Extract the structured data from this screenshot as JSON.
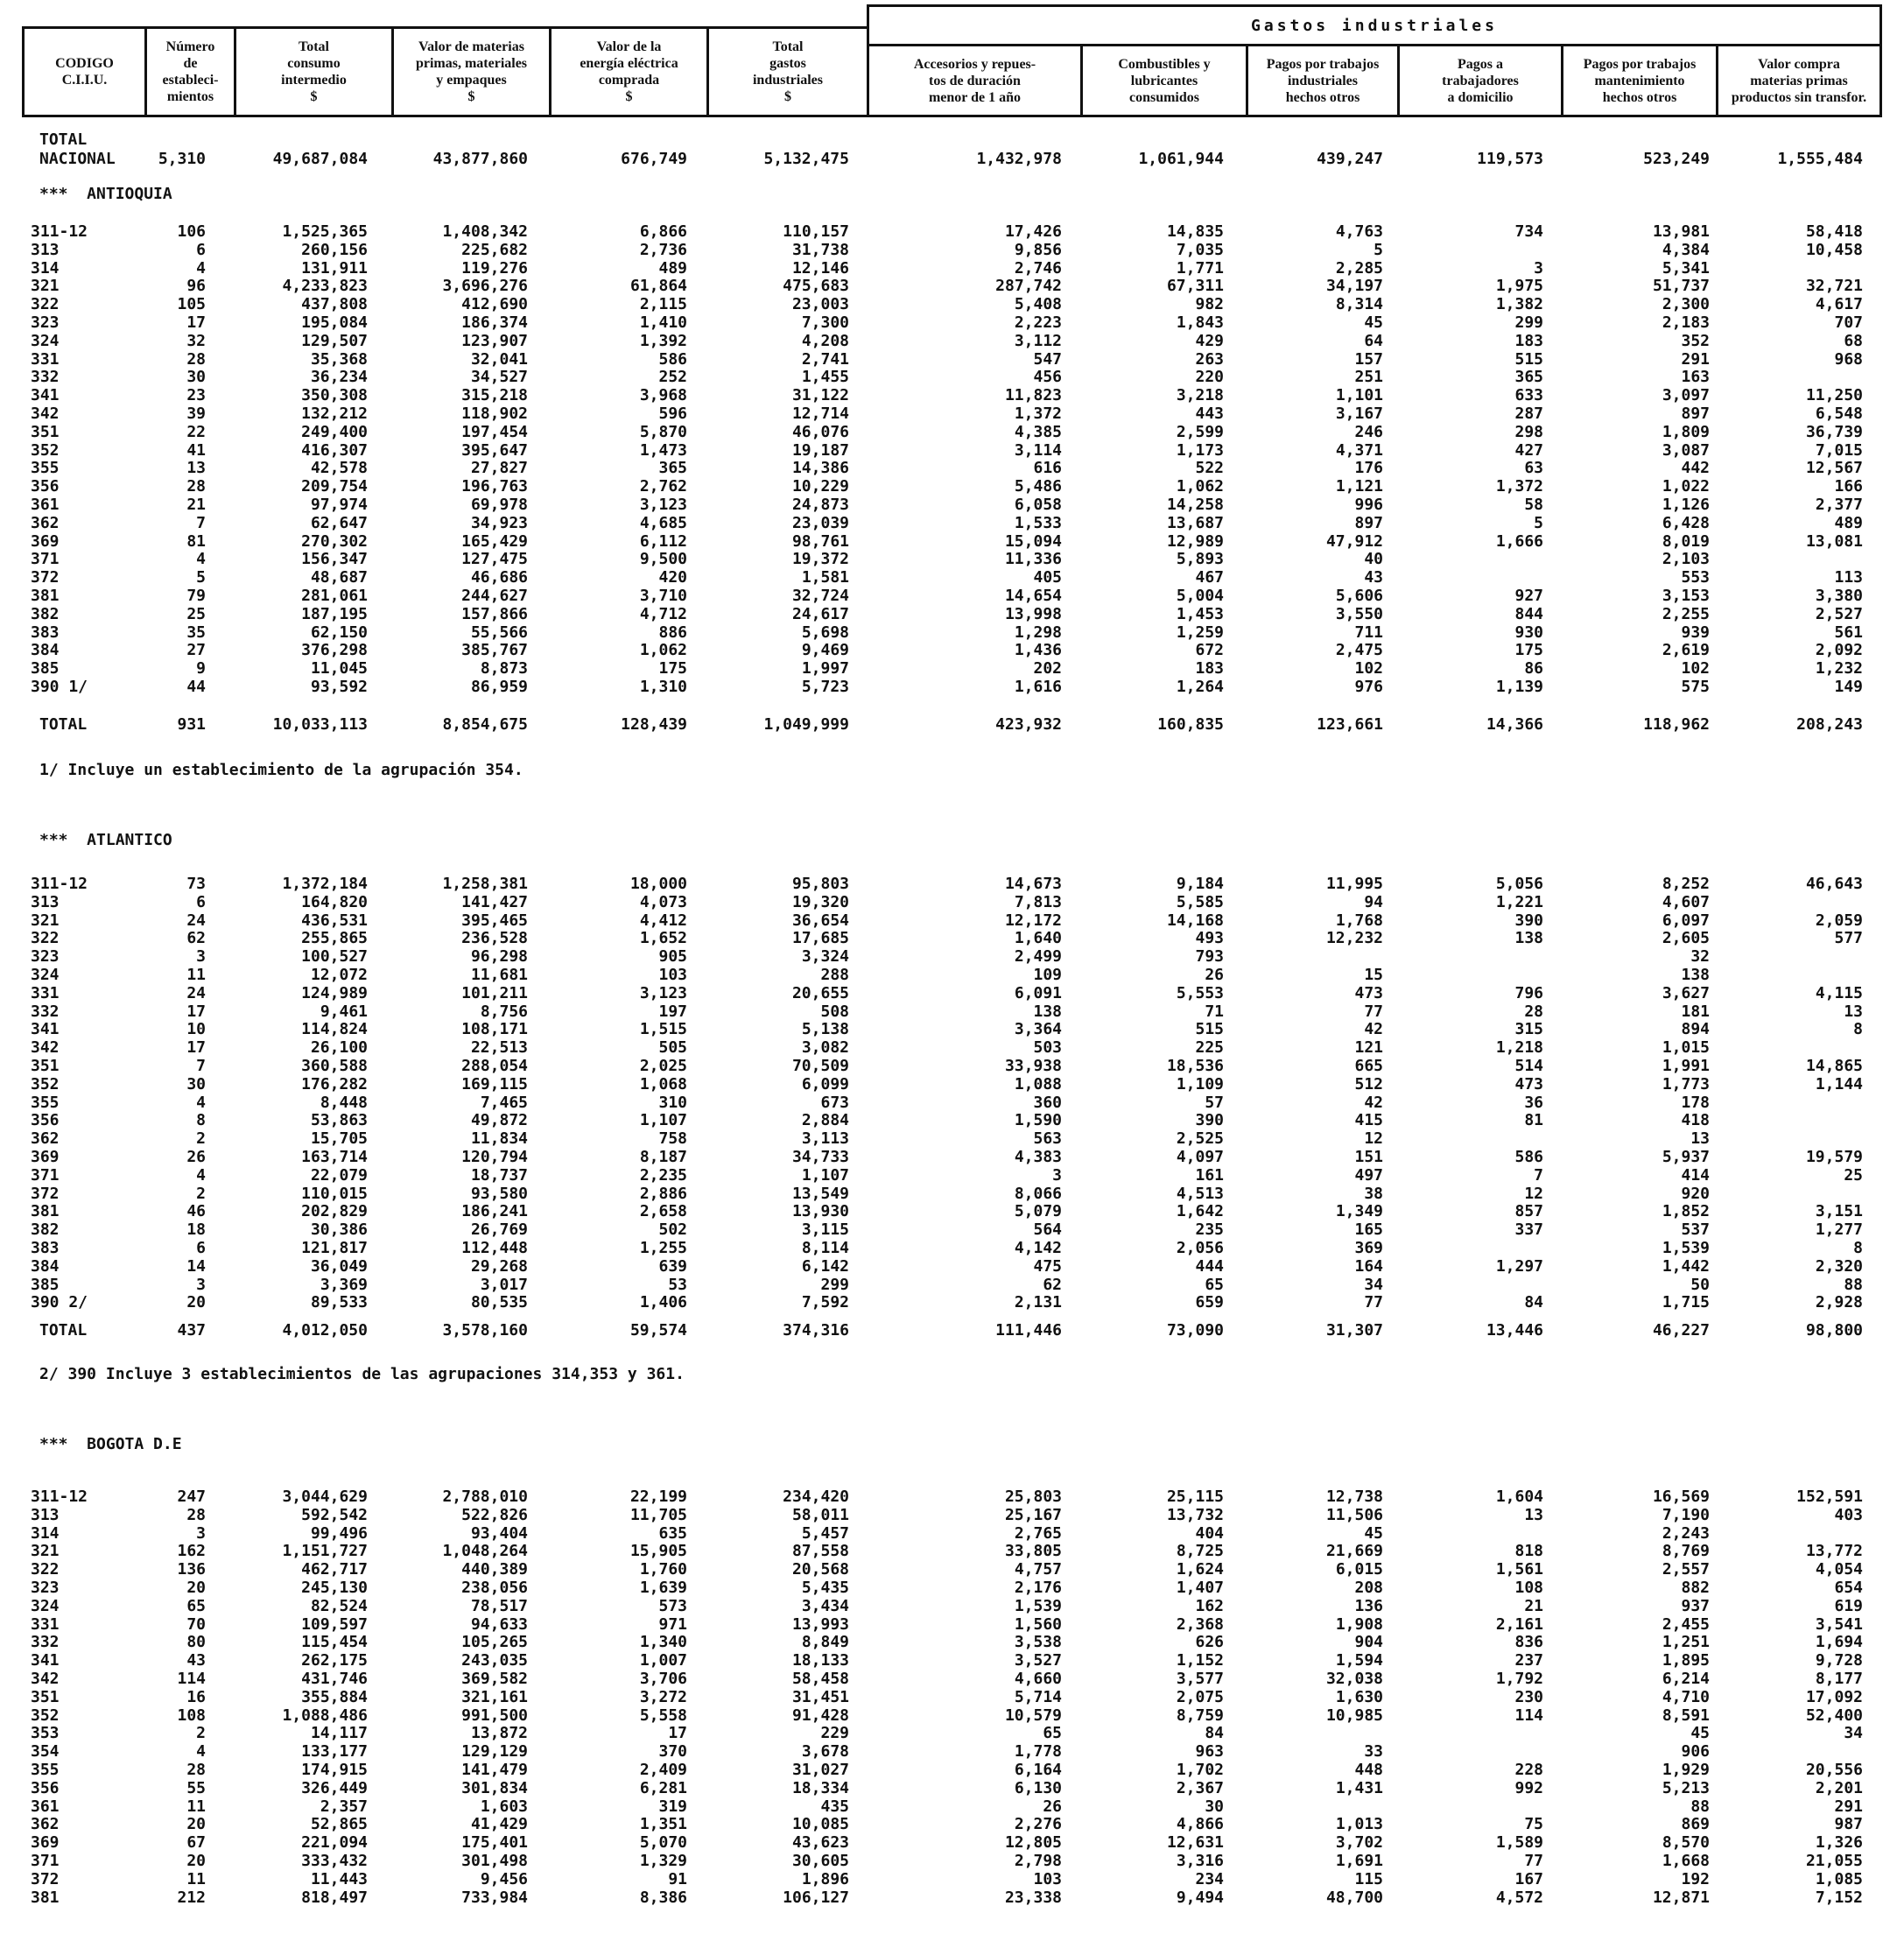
{
  "header": {
    "codigo": "CODIGO\nC.I.I.U.",
    "numero": "Número\nde\nestableci-\nmientos",
    "total_consumo": "Total\nconsumo\nintermedio\n$",
    "valor_materias": "Valor de materias\nprimas, materiales\ny empaques\n$",
    "valor_energia": "Valor de la\nenergía eléctrica\ncomprada\n$",
    "total_gastos": "Total\ngastos\nindustriales\n$",
    "gastos_industriales": "Gastos industriales",
    "accesorios": "Accesorios y repues-\ntos de duración\nmenor de 1 año",
    "combustibles": "Combustibles y\nlubricantes\nconsumidos",
    "pagos_trabajos_ind": "Pagos por trabajos\nindustriales\nhechos otros",
    "pagos_domicilio": "Pagos a\ntrabajadores\na domicilio",
    "pagos_mantenimiento": "Pagos por trabajos\nmantenimiento\nhechos otros",
    "valor_compra": "Valor compra\nmaterias primas\nproductos sin transfor."
  },
  "total_nacional": {
    "label1": "TOTAL",
    "label2": "NACIONAL",
    "values": [
      "5,310",
      "49,687,084",
      "43,877,860",
      "676,749",
      "5,132,475",
      "1,432,978",
      "1,061,944",
      "439,247",
      "119,573",
      "523,249",
      "1,555,484"
    ]
  },
  "sections": [
    {
      "title": "***  ANTIOQUIA",
      "rows": [
        [
          "311-12",
          "106",
          "1,525,365",
          "1,408,342",
          "6,866",
          "110,157",
          "17,426",
          "14,835",
          "4,763",
          "734",
          "13,981",
          "58,418"
        ],
        [
          "313",
          "6",
          "260,156",
          "225,682",
          "2,736",
          "31,738",
          "9,856",
          "7,035",
          "5",
          "",
          "4,384",
          "10,458"
        ],
        [
          "314",
          "4",
          "131,911",
          "119,276",
          "489",
          "12,146",
          "2,746",
          "1,771",
          "2,285",
          "3",
          "5,341",
          ""
        ],
        [
          "321",
          "96",
          "4,233,823",
          "3,696,276",
          "61,864",
          "475,683",
          "287,742",
          "67,311",
          "34,197",
          "1,975",
          "51,737",
          "32,721"
        ],
        [
          "322",
          "105",
          "437,808",
          "412,690",
          "2,115",
          "23,003",
          "5,408",
          "982",
          "8,314",
          "1,382",
          "2,300",
          "4,617"
        ],
        [
          "323",
          "17",
          "195,084",
          "186,374",
          "1,410",
          "7,300",
          "2,223",
          "1,843",
          "45",
          "299",
          "2,183",
          "707"
        ],
        [
          "324",
          "32",
          "129,507",
          "123,907",
          "1,392",
          "4,208",
          "3,112",
          "429",
          "64",
          "183",
          "352",
          "68"
        ],
        [
          "331",
          "28",
          "35,368",
          "32,041",
          "586",
          "2,741",
          "547",
          "263",
          "157",
          "515",
          "291",
          "968"
        ],
        [
          "332",
          "30",
          "36,234",
          "34,527",
          "252",
          "1,455",
          "456",
          "220",
          "251",
          "365",
          "163",
          ""
        ],
        [
          "341",
          "23",
          "350,308",
          "315,218",
          "3,968",
          "31,122",
          "11,823",
          "3,218",
          "1,101",
          "633",
          "3,097",
          "11,250"
        ],
        [
          "342",
          "39",
          "132,212",
          "118,902",
          "596",
          "12,714",
          "1,372",
          "443",
          "3,167",
          "287",
          "897",
          "6,548"
        ],
        [
          "351",
          "22",
          "249,400",
          "197,454",
          "5,870",
          "46,076",
          "4,385",
          "2,599",
          "246",
          "298",
          "1,809",
          "36,739"
        ],
        [
          "352",
          "41",
          "416,307",
          "395,647",
          "1,473",
          "19,187",
          "3,114",
          "1,173",
          "4,371",
          "427",
          "3,087",
          "7,015"
        ],
        [
          "355",
          "13",
          "42,578",
          "27,827",
          "365",
          "14,386",
          "616",
          "522",
          "176",
          "63",
          "442",
          "12,567"
        ],
        [
          "356",
          "28",
          "209,754",
          "196,763",
          "2,762",
          "10,229",
          "5,486",
          "1,062",
          "1,121",
          "1,372",
          "1,022",
          "166"
        ],
        [
          "361",
          "21",
          "97,974",
          "69,978",
          "3,123",
          "24,873",
          "6,058",
          "14,258",
          "996",
          "58",
          "1,126",
          "2,377"
        ],
        [
          "362",
          "7",
          "62,647",
          "34,923",
          "4,685",
          "23,039",
          "1,533",
          "13,687",
          "897",
          "5",
          "6,428",
          "489"
        ],
        [
          "369",
          "81",
          "270,302",
          "165,429",
          "6,112",
          "98,761",
          "15,094",
          "12,989",
          "47,912",
          "1,666",
          "8,019",
          "13,081"
        ],
        [
          "371",
          "4",
          "156,347",
          "127,475",
          "9,500",
          "19,372",
          "11,336",
          "5,893",
          "40",
          "",
          "2,103",
          ""
        ],
        [
          "372",
          "5",
          "48,687",
          "46,686",
          "420",
          "1,581",
          "405",
          "467",
          "43",
          "",
          "553",
          "113"
        ],
        [
          "381",
          "79",
          "281,061",
          "244,627",
          "3,710",
          "32,724",
          "14,654",
          "5,004",
          "5,606",
          "927",
          "3,153",
          "3,380"
        ],
        [
          "382",
          "25",
          "187,195",
          "157,866",
          "4,712",
          "24,617",
          "13,998",
          "1,453",
          "3,550",
          "844",
          "2,255",
          "2,527"
        ],
        [
          "383",
          "35",
          "62,150",
          "55,566",
          "886",
          "5,698",
          "1,298",
          "1,259",
          "711",
          "930",
          "939",
          "561"
        ],
        [
          "384",
          "27",
          "376,298",
          "385,767",
          "1,062",
          "9,469",
          "1,436",
          "672",
          "2,475",
          "175",
          "2,619",
          "2,092"
        ],
        [
          "385",
          "9",
          "11,045",
          "8,873",
          "175",
          "1,997",
          "202",
          "183",
          "102",
          "86",
          "102",
          "1,232"
        ],
        [
          "390 1/",
          "44",
          "93,592",
          "86,959",
          "1,310",
          "5,723",
          "1,616",
          "1,264",
          "976",
          "1,139",
          "575",
          "149"
        ]
      ],
      "total": [
        "TOTAL",
        "931",
        "10,033,113",
        "8,854,675",
        "128,439",
        "1,049,999",
        "423,932",
        "160,835",
        "123,661",
        "14,366",
        "118,962",
        "208,243"
      ],
      "note": "1/ Incluye un establecimiento de la agrupación 354."
    },
    {
      "title": "***  ATLANTICO",
      "rows": [
        [
          "311-12",
          "73",
          "1,372,184",
          "1,258,381",
          "18,000",
          "95,803",
          "14,673",
          "9,184",
          "11,995",
          "5,056",
          "8,252",
          "46,643"
        ],
        [
          "313",
          "6",
          "164,820",
          "141,427",
          "4,073",
          "19,320",
          "7,813",
          "5,585",
          "94",
          "1,221",
          "4,607",
          ""
        ],
        [
          "321",
          "24",
          "436,531",
          "395,465",
          "4,412",
          "36,654",
          "12,172",
          "14,168",
          "1,768",
          "390",
          "6,097",
          "2,059"
        ],
        [
          "322",
          "62",
          "255,865",
          "236,528",
          "1,652",
          "17,685",
          "1,640",
          "493",
          "12,232",
          "138",
          "2,605",
          "577"
        ],
        [
          "323",
          "3",
          "100,527",
          "96,298",
          "905",
          "3,324",
          "2,499",
          "793",
          "",
          "",
          "32",
          ""
        ],
        [
          "324",
          "11",
          "12,072",
          "11,681",
          "103",
          "288",
          "109",
          "26",
          "15",
          "",
          "138",
          ""
        ],
        [
          "331",
          "24",
          "124,989",
          "101,211",
          "3,123",
          "20,655",
          "6,091",
          "5,553",
          "473",
          "796",
          "3,627",
          "4,115"
        ],
        [
          "332",
          "17",
          "9,461",
          "8,756",
          "197",
          "508",
          "138",
          "71",
          "77",
          "28",
          "181",
          "13"
        ],
        [
          "341",
          "10",
          "114,824",
          "108,171",
          "1,515",
          "5,138",
          "3,364",
          "515",
          "42",
          "315",
          "894",
          "8"
        ],
        [
          "342",
          "17",
          "26,100",
          "22,513",
          "505",
          "3,082",
          "503",
          "225",
          "121",
          "1,218",
          "1,015",
          ""
        ],
        [
          "351",
          "7",
          "360,588",
          "288,054",
          "2,025",
          "70,509",
          "33,938",
          "18,536",
          "665",
          "514",
          "1,991",
          "14,865"
        ],
        [
          "352",
          "30",
          "176,282",
          "169,115",
          "1,068",
          "6,099",
          "1,088",
          "1,109",
          "512",
          "473",
          "1,773",
          "1,144"
        ],
        [
          "355",
          "4",
          "8,448",
          "7,465",
          "310",
          "673",
          "360",
          "57",
          "42",
          "36",
          "178",
          ""
        ],
        [
          "356",
          "8",
          "53,863",
          "49,872",
          "1,107",
          "2,884",
          "1,590",
          "390",
          "415",
          "81",
          "418",
          ""
        ],
        [
          "362",
          "2",
          "15,705",
          "11,834",
          "758",
          "3,113",
          "563",
          "2,525",
          "12",
          "",
          "13",
          ""
        ],
        [
          "369",
          "26",
          "163,714",
          "120,794",
          "8,187",
          "34,733",
          "4,383",
          "4,097",
          "151",
          "586",
          "5,937",
          "19,579"
        ],
        [
          "371",
          "4",
          "22,079",
          "18,737",
          "2,235",
          "1,107",
          "3",
          "161",
          "497",
          "7",
          "414",
          "25"
        ],
        [
          "372",
          "2",
          "110,015",
          "93,580",
          "2,886",
          "13,549",
          "8,066",
          "4,513",
          "38",
          "12",
          "920",
          ""
        ],
        [
          "381",
          "46",
          "202,829",
          "186,241",
          "2,658",
          "13,930",
          "5,079",
          "1,642",
          "1,349",
          "857",
          "1,852",
          "3,151"
        ],
        [
          "382",
          "18",
          "30,386",
          "26,769",
          "502",
          "3,115",
          "564",
          "235",
          "165",
          "337",
          "537",
          "1,277"
        ],
        [
          "383",
          "6",
          "121,817",
          "112,448",
          "1,255",
          "8,114",
          "4,142",
          "2,056",
          "369",
          "",
          "1,539",
          "8"
        ],
        [
          "384",
          "14",
          "36,049",
          "29,268",
          "639",
          "6,142",
          "475",
          "444",
          "164",
          "1,297",
          "1,442",
          "2,320"
        ],
        [
          "385",
          "3",
          "3,369",
          "3,017",
          "53",
          "299",
          "62",
          "65",
          "34",
          "",
          "50",
          "88"
        ],
        [
          "390 2/",
          "20",
          "89,533",
          "80,535",
          "1,406",
          "7,592",
          "2,131",
          "659",
          "77",
          "84",
          "1,715",
          "2,928"
        ]
      ],
      "total": [
        "TOTAL",
        "437",
        "4,012,050",
        "3,578,160",
        "59,574",
        "374,316",
        "111,446",
        "73,090",
        "31,307",
        "13,446",
        "46,227",
        "98,800"
      ],
      "note": "2/ 390 Incluye 3 establecimientos de las agrupaciones 314,353 y 361."
    },
    {
      "title": "***  BOGOTA D.E",
      "rows": [
        [
          "311-12",
          "247",
          "3,044,629",
          "2,788,010",
          "22,199",
          "234,420",
          "25,803",
          "25,115",
          "12,738",
          "1,604",
          "16,569",
          "152,591"
        ],
        [
          "313",
          "28",
          "592,542",
          "522,826",
          "11,705",
          "58,011",
          "25,167",
          "13,732",
          "11,506",
          "13",
          "7,190",
          "403"
        ],
        [
          "314",
          "3",
          "99,496",
          "93,404",
          "635",
          "5,457",
          "2,765",
          "404",
          "45",
          "",
          "2,243",
          ""
        ],
        [
          "321",
          "162",
          "1,151,727",
          "1,048,264",
          "15,905",
          "87,558",
          "33,805",
          "8,725",
          "21,669",
          "818",
          "8,769",
          "13,772"
        ],
        [
          "322",
          "136",
          "462,717",
          "440,389",
          "1,760",
          "20,568",
          "4,757",
          "1,624",
          "6,015",
          "1,561",
          "2,557",
          "4,054"
        ],
        [
          "323",
          "20",
          "245,130",
          "238,056",
          "1,639",
          "5,435",
          "2,176",
          "1,407",
          "208",
          "108",
          "882",
          "654"
        ],
        [
          "324",
          "65",
          "82,524",
          "78,517",
          "573",
          "3,434",
          "1,539",
          "162",
          "136",
          "21",
          "937",
          "619"
        ],
        [
          "331",
          "70",
          "109,597",
          "94,633",
          "971",
          "13,993",
          "1,560",
          "2,368",
          "1,908",
          "2,161",
          "2,455",
          "3,541"
        ],
        [
          "332",
          "80",
          "115,454",
          "105,265",
          "1,340",
          "8,849",
          "3,538",
          "626",
          "904",
          "836",
          "1,251",
          "1,694"
        ],
        [
          "341",
          "43",
          "262,175",
          "243,035",
          "1,007",
          "18,133",
          "3,527",
          "1,152",
          "1,594",
          "237",
          "1,895",
          "9,728"
        ],
        [
          "342",
          "114",
          "431,746",
          "369,582",
          "3,706",
          "58,458",
          "4,660",
          "3,577",
          "32,038",
          "1,792",
          "6,214",
          "8,177"
        ],
        [
          "351",
          "16",
          "355,884",
          "321,161",
          "3,272",
          "31,451",
          "5,714",
          "2,075",
          "1,630",
          "230",
          "4,710",
          "17,092"
        ],
        [
          "352",
          "108",
          "1,088,486",
          "991,500",
          "5,558",
          "91,428",
          "10,579",
          "8,759",
          "10,985",
          "114",
          "8,591",
          "52,400"
        ],
        [
          "353",
          "2",
          "14,117",
          "13,872",
          "17",
          "229",
          "65",
          "84",
          "",
          "",
          "45",
          "34"
        ],
        [
          "354",
          "4",
          "133,177",
          "129,129",
          "370",
          "3,678",
          "1,778",
          "963",
          "33",
          "",
          "906",
          ""
        ],
        [
          "355",
          "28",
          "174,915",
          "141,479",
          "2,409",
          "31,027",
          "6,164",
          "1,702",
          "448",
          "228",
          "1,929",
          "20,556"
        ],
        [
          "356",
          "55",
          "326,449",
          "301,834",
          "6,281",
          "18,334",
          "6,130",
          "2,367",
          "1,431",
          "992",
          "5,213",
          "2,201"
        ],
        [
          "361",
          "11",
          "2,357",
          "1,603",
          "319",
          "435",
          "26",
          "30",
          "",
          "",
          "88",
          "291"
        ],
        [
          "362",
          "20",
          "52,865",
          "41,429",
          "1,351",
          "10,085",
          "2,276",
          "4,866",
          "1,013",
          "75",
          "869",
          "987"
        ],
        [
          "369",
          "67",
          "221,094",
          "175,401",
          "5,070",
          "43,623",
          "12,805",
          "12,631",
          "3,702",
          "1,589",
          "8,570",
          "1,326"
        ],
        [
          "371",
          "20",
          "333,432",
          "301,498",
          "1,329",
          "30,605",
          "2,798",
          "3,316",
          "1,691",
          "77",
          "1,668",
          "21,055"
        ],
        [
          "372",
          "11",
          "11,443",
          "9,456",
          "91",
          "1,896",
          "103",
          "234",
          "115",
          "167",
          "192",
          "1,085"
        ],
        [
          "381",
          "212",
          "818,497",
          "733,984",
          "8,386",
          "106,127",
          "23,338",
          "9,494",
          "48,700",
          "4,572",
          "12,871",
          "7,152"
        ]
      ],
      "total": null,
      "note": ""
    }
  ]
}
